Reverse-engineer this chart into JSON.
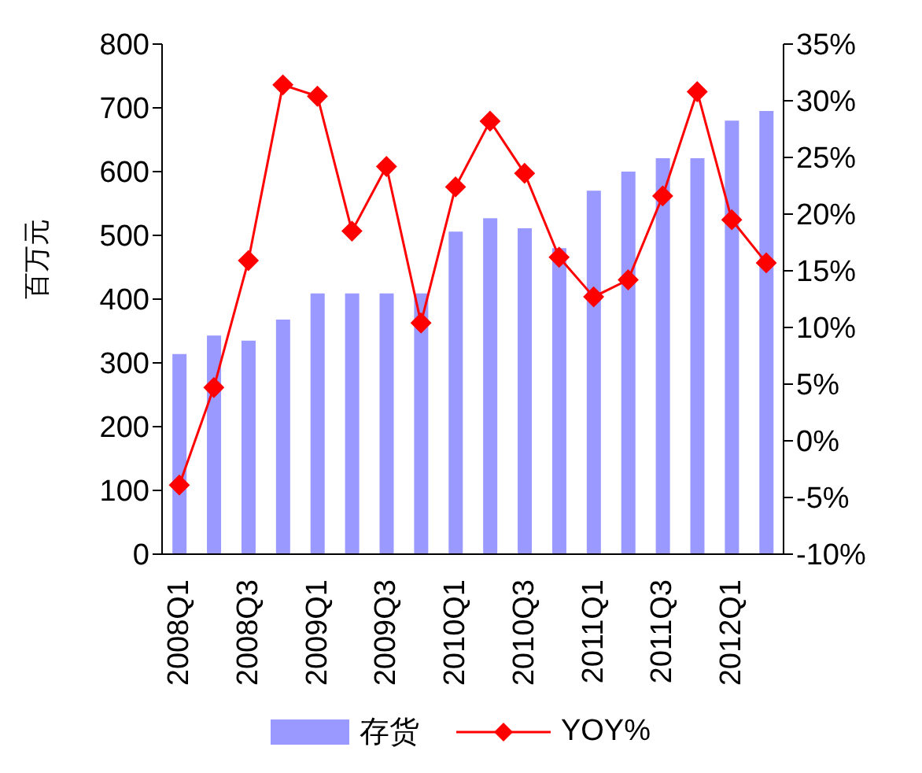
{
  "chart_data": {
    "type": "bar",
    "ylabel": "百万元",
    "categories": [
      "2008Q1",
      null,
      "2008Q3",
      null,
      "2009Q1",
      null,
      "2009Q3",
      null,
      "2010Q1",
      null,
      "2010Q3",
      null,
      "2011Q1",
      null,
      "2011Q3",
      null,
      "2012Q1",
      null
    ],
    "series": [
      {
        "name": "存货",
        "color": "#9999ff",
        "values": [
          314,
          343,
          335,
          368,
          409,
          409,
          409,
          409,
          506,
          527,
          511,
          480,
          570,
          600,
          621,
          621,
          680,
          695
        ]
      },
      {
        "name": "YOY%",
        "type": "line",
        "axis": "y2",
        "color": "#ff0000",
        "marker": "diamond",
        "values": [
          -3.9,
          4.7,
          15.9,
          31.4,
          30.4,
          18.5,
          24.2,
          10.4,
          22.4,
          28.2,
          23.6,
          16.2,
          12.7,
          14.2,
          21.6,
          30.8,
          19.5,
          15.7
        ]
      }
    ],
    "ylim": [
      0,
      800
    ],
    "yticks": [
      0,
      100,
      200,
      300,
      400,
      500,
      600,
      700,
      800
    ],
    "y2lim": [
      -10,
      35
    ],
    "y2ticks": [
      {
        "value": -10,
        "label": "-10%"
      },
      {
        "value": -5,
        "label": "-5%"
      },
      {
        "value": 0,
        "label": "0%"
      },
      {
        "value": 5,
        "label": "5%"
      },
      {
        "value": 10,
        "label": "10%"
      },
      {
        "value": 15,
        "label": "15%"
      },
      {
        "value": 20,
        "label": "20%"
      },
      {
        "value": 25,
        "label": "25%"
      },
      {
        "value": 30,
        "label": "30%"
      },
      {
        "value": 35,
        "label": "35%"
      }
    ],
    "legend": "bottom"
  }
}
